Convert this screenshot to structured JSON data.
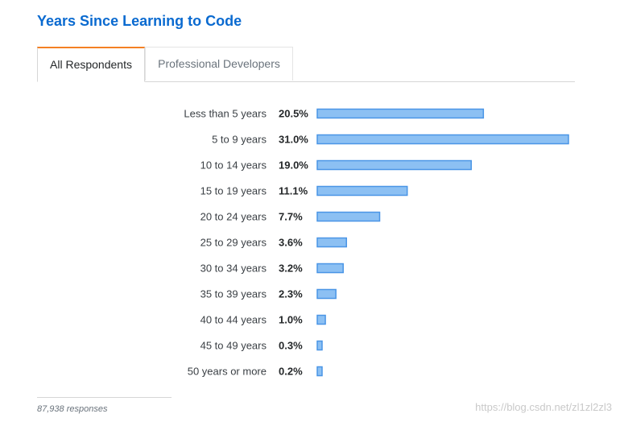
{
  "title": "Years Since Learning to Code",
  "tabs": [
    {
      "label": "All Respondents",
      "active": true
    },
    {
      "label": "Professional Developers",
      "active": false
    }
  ],
  "chart_data": {
    "type": "bar",
    "orientation": "horizontal",
    "categories": [
      "Less than 5 years",
      "5 to 9 years",
      "10 to 14 years",
      "15 to 19 years",
      "20 to 24 years",
      "25 to 29 years",
      "30 to 34 years",
      "35 to 39 years",
      "40 to 44 years",
      "45 to 49 years",
      "50 years or more"
    ],
    "values": [
      20.5,
      31.0,
      19.0,
      11.1,
      7.7,
      3.6,
      3.2,
      2.3,
      1.0,
      0.3,
      0.2
    ],
    "value_labels": [
      "20.5%",
      "31.0%",
      "19.0%",
      "11.1%",
      "7.7%",
      "3.6%",
      "3.2%",
      "2.3%",
      "1.0%",
      "0.3%",
      "0.2%"
    ],
    "title": "Years Since Learning to Code",
    "xlabel": "",
    "ylabel": "",
    "grid": false,
    "legend": "none",
    "bar_color": "#8cc0f3",
    "bar_border_color": "#4a95e6"
  },
  "footer": {
    "responses": "87,938 responses"
  },
  "watermark": "https://blog.csdn.net/zl1zl2zl3",
  "colors": {
    "title": "#0a6ad0",
    "tab_accent": "#f48024"
  }
}
